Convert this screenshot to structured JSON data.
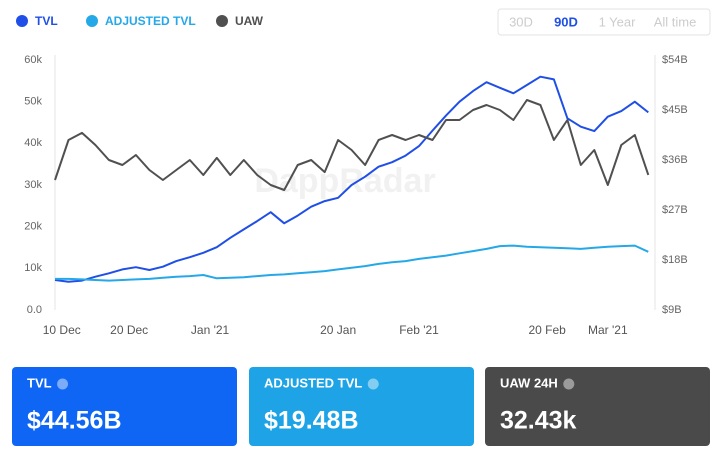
{
  "chart_data": {
    "type": "line",
    "watermark": "DappRadar",
    "range_buttons": [
      "30D",
      "90D",
      "1 Year",
      "All time"
    ],
    "active_range": 1,
    "x": [
      "2020-12-09",
      "2020-12-11",
      "2020-12-13",
      "2020-12-15",
      "2020-12-17",
      "2020-12-19",
      "2020-12-21",
      "2020-12-23",
      "2020-12-25",
      "2020-12-27",
      "2020-12-29",
      "2020-12-31",
      "2021-01-02",
      "2021-01-04",
      "2021-01-06",
      "2021-01-08",
      "2021-01-10",
      "2021-01-12",
      "2021-01-14",
      "2021-01-16",
      "2021-01-18",
      "2021-01-20",
      "2021-01-22",
      "2021-01-24",
      "2021-01-26",
      "2021-01-28",
      "2021-01-30",
      "2021-02-01",
      "2021-02-03",
      "2021-02-05",
      "2021-02-07",
      "2021-02-09",
      "2021-02-11",
      "2021-02-13",
      "2021-02-15",
      "2021-02-17",
      "2021-02-19",
      "2021-02-21",
      "2021-02-23",
      "2021-02-25",
      "2021-02-27",
      "2021-03-01",
      "2021-03-03",
      "2021-03-05",
      "2021-03-07"
    ],
    "xlim": [
      "2020-12-09",
      "2021-03-08"
    ],
    "xticks": [
      {
        "value": "2020-12-10",
        "label": "10 Dec"
      },
      {
        "value": "2020-12-20",
        "label": "20 Dec"
      },
      {
        "value": "2021-01-01",
        "label": "Jan '21"
      },
      {
        "value": "2021-01-20",
        "label": "20 Jan"
      },
      {
        "value": "2021-02-01",
        "label": "Feb '21"
      },
      {
        "value": "2021-02-20",
        "label": "20 Feb"
      },
      {
        "value": "2021-03-01",
        "label": "Mar '21"
      }
    ],
    "ylim": [
      0,
      60000
    ],
    "yticks": [
      {
        "value": 0,
        "label": "0.0"
      },
      {
        "value": 10000,
        "label": "10k"
      },
      {
        "value": 20000,
        "label": "20k"
      },
      {
        "value": 30000,
        "label": "30k"
      },
      {
        "value": 40000,
        "label": "40k"
      },
      {
        "value": 50000,
        "label": "50k"
      },
      {
        "value": 60000,
        "label": "60k"
      }
    ],
    "y2lim": [
      9,
      54
    ],
    "y2ticks": [
      {
        "value": 9,
        "label": "$9B"
      },
      {
        "value": 18,
        "label": "$18B"
      },
      {
        "value": 27,
        "label": "$27B"
      },
      {
        "value": 36,
        "label": "$36B"
      },
      {
        "value": 45,
        "label": "$45B"
      },
      {
        "value": 54,
        "label": "$54B"
      }
    ],
    "series": [
      {
        "name": "TVL",
        "color": "#1f4fe6",
        "axis": "y2",
        "values": [
          14.4,
          14.1,
          14.3,
          15.0,
          15.6,
          16.3,
          16.7,
          16.2,
          16.8,
          17.8,
          18.5,
          19.3,
          20.3,
          22.0,
          23.5,
          25.0,
          26.6,
          24.6,
          26.0,
          27.6,
          28.6,
          29.2,
          31.5,
          33.0,
          34.8,
          35.6,
          36.8,
          38.5,
          41.3,
          44.0,
          46.5,
          48.4,
          50.0,
          49.0,
          48.0,
          49.5,
          51.0,
          50.5,
          43.5,
          42.0,
          41.2,
          43.8,
          44.8,
          46.5,
          44.56
        ]
      },
      {
        "name": "ADJUSTED TVL",
        "color": "#25a8e8",
        "axis": "y2",
        "values": [
          14.6,
          14.6,
          14.5,
          14.4,
          14.3,
          14.4,
          14.5,
          14.6,
          14.8,
          15.0,
          15.1,
          15.3,
          14.7,
          14.8,
          14.9,
          15.1,
          15.3,
          15.4,
          15.6,
          15.8,
          16.0,
          16.3,
          16.6,
          16.9,
          17.3,
          17.6,
          17.8,
          18.2,
          18.5,
          18.8,
          19.2,
          19.6,
          20.0,
          20.5,
          20.6,
          20.4,
          20.3,
          20.2,
          20.1,
          20.0,
          20.2,
          20.4,
          20.5,
          20.6,
          19.48
        ]
      },
      {
        "name": "UAW",
        "color": "#505050",
        "values": [
          31200,
          40800,
          42500,
          39600,
          36000,
          34800,
          37200,
          33600,
          31200,
          33600,
          36000,
          32400,
          36500,
          32400,
          36000,
          32400,
          30000,
          28800,
          34800,
          36000,
          33100,
          40800,
          38400,
          34800,
          40800,
          42000,
          40800,
          42000,
          40800,
          45600,
          45600,
          48000,
          49200,
          48000,
          45600,
          50400,
          49200,
          40800,
          45600,
          34800,
          38400,
          30000,
          39600,
          42000,
          32430
        ]
      }
    ]
  },
  "cards": [
    {
      "label": "TVL",
      "value": "$44.56B",
      "color": "#0f66f5"
    },
    {
      "label": "ADJUSTED TVL",
      "value": "$19.48B",
      "color": "#1ea4e6"
    },
    {
      "label": "UAW 24H",
      "value": "32.43k",
      "color": "#4a4a4a"
    }
  ]
}
